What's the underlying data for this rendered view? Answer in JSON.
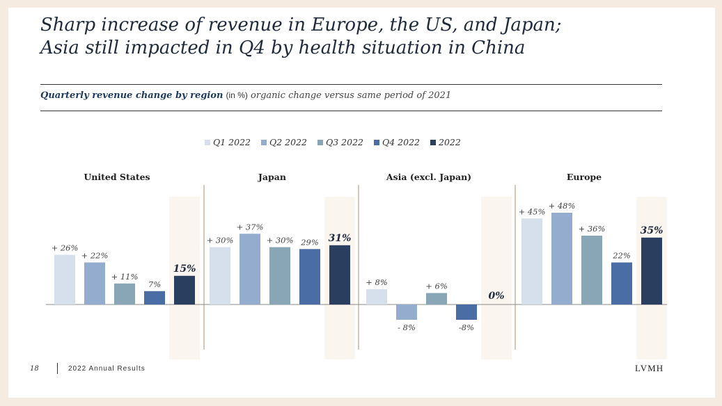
{
  "title": "Sharp increase of revenue in Europe, the US, and Japan;\nAsia still impacted in Q4 by health situation in China",
  "subtitle": {
    "bold": "Quarterly revenue change by region",
    "unit": "(in %)",
    "note": "organic change versus same period of 2021"
  },
  "footer": {
    "page": "18",
    "text": "2022 Annual Results",
    "logo": "LVMH"
  },
  "colors": {
    "Q1 2022": "#d6e0ec",
    "Q2 2022": "#94adcf",
    "Q3 2022": "#88a6b5",
    "Q4 2022": "#4a6da5",
    "2022": "#2a3f5f",
    "highlight_band": "#fbf5f0",
    "divider": "#a89070",
    "axis": "#888888"
  },
  "chart_data": {
    "type": "bar",
    "series_names": [
      "Q1 2022",
      "Q2 2022",
      "Q3 2022",
      "Q4 2022",
      "2022"
    ],
    "groups": [
      {
        "name": "United States",
        "values": [
          26,
          22,
          11,
          7,
          15
        ],
        "labels": [
          "+ 26%",
          "+ 22%",
          "+ 11%",
          "7%",
          "15%"
        ]
      },
      {
        "name": "Japan",
        "values": [
          30,
          37,
          30,
          29,
          31
        ],
        "labels": [
          "+ 30%",
          "+ 37%",
          "+ 30%",
          "29%",
          "31%"
        ]
      },
      {
        "name": "Asia (excl. Japan)",
        "values": [
          8,
          -8,
          6,
          -8,
          0
        ],
        "labels": [
          "+ 8%",
          "- 8%",
          "+ 6%",
          "-8%",
          "0%"
        ]
      },
      {
        "name": "Europe",
        "values": [
          45,
          48,
          36,
          22,
          35
        ],
        "labels": [
          "+ 45%",
          "+ 48%",
          "+ 36%",
          "22%",
          "35%"
        ]
      }
    ],
    "ylim": [
      -29,
      57
    ],
    "legend_position": "top-center",
    "grid": false
  }
}
